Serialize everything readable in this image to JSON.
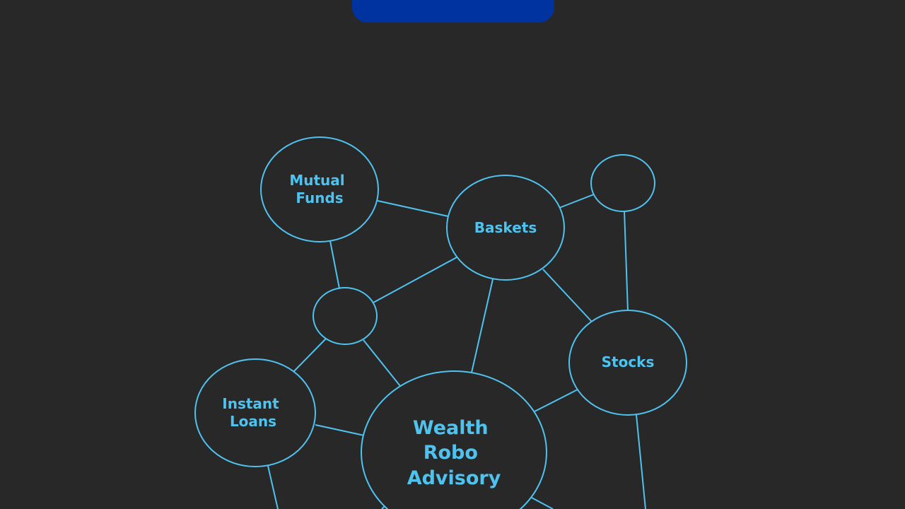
{
  "colors": {
    "background": "#282828",
    "accent": "#4fc3ef",
    "top_tab": "#0033a0"
  },
  "diagram": {
    "nodes": {
      "mutual_funds": [
        "Mutual",
        "Funds"
      ],
      "baskets": [
        "Baskets"
      ],
      "stocks": [
        "Stocks"
      ],
      "instant_loans": [
        "Instant",
        "Loans"
      ],
      "wealth_robo_advisory": [
        "Wealth",
        "Robo",
        "Advisory"
      ]
    }
  }
}
